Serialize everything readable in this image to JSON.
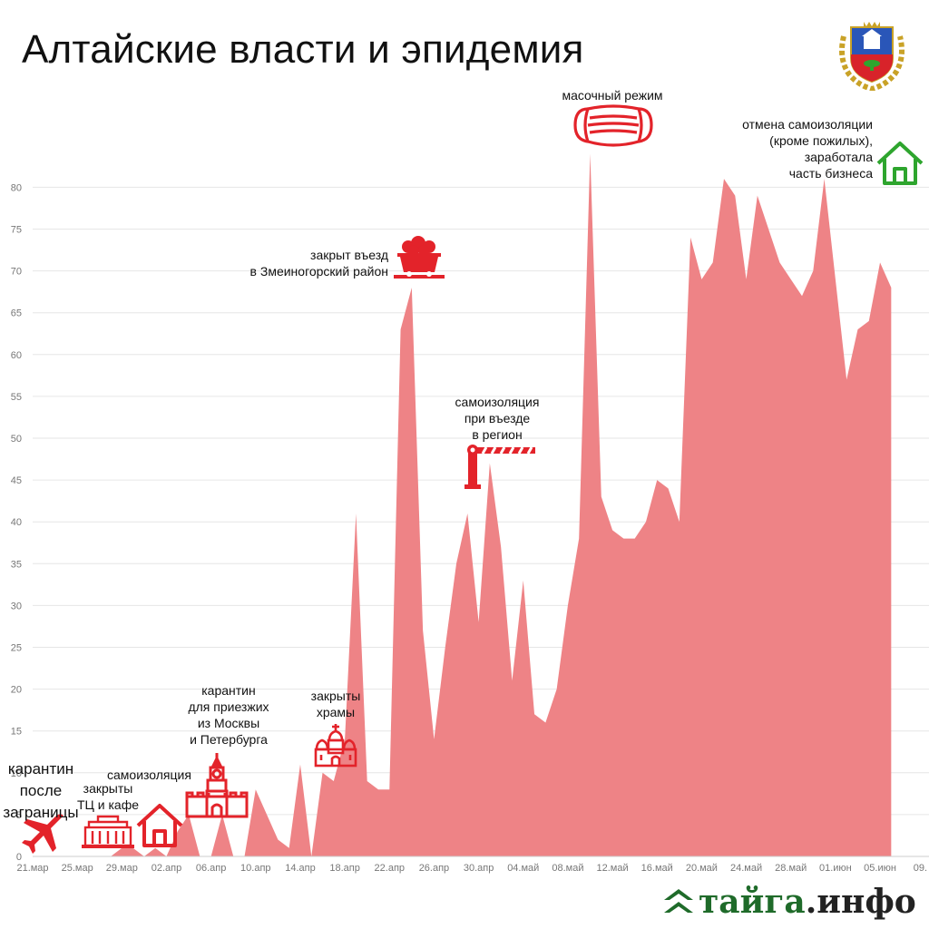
{
  "title": "Алтайские власти и эпидемия",
  "logo": {
    "part1": "тайга",
    "part2": ".инфо"
  },
  "colors": {
    "area": "#ee8386",
    "accent_red": "#e3232a",
    "accent_green": "#2ea52e",
    "logo_green": "#1f6b2a"
  },
  "icons": [
    "crest-icon",
    "plane-icon",
    "mall-icon",
    "house-icon",
    "kremlin-icon",
    "church-icon",
    "mine-cart-icon",
    "barrier-icon",
    "mask-icon",
    "house-green-icon",
    "chevron-logo-icon"
  ],
  "annotations": [
    {
      "id": "ann-quarantine-abroad",
      "lines": [
        "карантин",
        "после",
        "заграницы"
      ]
    },
    {
      "id": "ann-malls-closed",
      "lines": [
        "закрыты",
        "ТЦ и кафе"
      ]
    },
    {
      "id": "ann-selfisolation",
      "lines": [
        "самоизоляция"
      ]
    },
    {
      "id": "ann-quarantine-moscow",
      "lines": [
        "карантин",
        "для приезжих",
        "из Москвы",
        "и Петербурга"
      ]
    },
    {
      "id": "ann-churches",
      "lines": [
        "закрыты",
        "храмы"
      ]
    },
    {
      "id": "ann-zmeinogorsk",
      "lines": [
        "закрыт въезд",
        "в Змеиногорский район"
      ]
    },
    {
      "id": "ann-entry-isolation",
      "lines": [
        "самоизоляция",
        "при въезде",
        "в регион"
      ]
    },
    {
      "id": "ann-mask",
      "lines": [
        "масочный режим"
      ]
    },
    {
      "id": "ann-lift",
      "lines": [
        "отмена самоизоляции",
        "(кроме пожилых),",
        "заработала",
        "часть бизнеса"
      ]
    }
  ],
  "chart_data": {
    "type": "area",
    "title": "Алтайские власти и эпидемия",
    "xlabel": "",
    "ylabel": "",
    "ylim": [
      0,
      85
    ],
    "yticks": [
      0,
      5,
      10,
      15,
      20,
      25,
      30,
      35,
      40,
      45,
      50,
      55,
      60,
      65,
      70,
      75,
      80
    ],
    "xtick_labels": [
      "21.мар",
      "25.мар",
      "29.мар",
      "02.апр",
      "06.апр",
      "10.апр",
      "14.апр",
      "18.апр",
      "22.апр",
      "26.апр",
      "30.апр",
      "04.май",
      "08.май",
      "12.май",
      "16.май",
      "20.май",
      "24.май",
      "28.май",
      "01.июн",
      "05.июн",
      "09."
    ],
    "grid": "horizontal",
    "series": [
      {
        "start_date": "21.мар",
        "values": [
          0,
          0,
          0,
          0,
          0,
          0,
          0,
          0,
          1,
          1,
          0,
          1,
          0,
          3,
          5,
          0,
          0,
          5,
          0,
          0,
          8,
          5,
          2,
          1,
          11,
          0,
          10,
          9,
          14,
          41,
          9,
          8,
          8,
          63,
          68,
          27,
          14,
          25,
          35,
          41,
          28,
          47,
          37,
          21,
          33,
          17,
          16,
          20,
          30,
          38,
          84,
          43,
          39,
          38,
          38,
          40,
          45,
          44,
          40,
          74,
          69,
          71,
          81,
          79,
          69,
          79,
          75,
          71,
          69,
          67,
          70,
          81,
          69,
          57,
          63,
          64,
          71,
          68
        ]
      }
    ]
  }
}
